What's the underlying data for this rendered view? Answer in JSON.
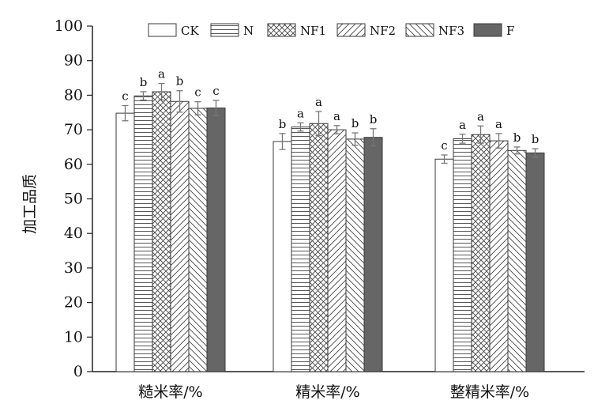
{
  "chart_data": {
    "type": "bar",
    "title": "",
    "xlabel": "",
    "ylabel": "加工品质",
    "ylim": [
      0,
      100
    ],
    "yticks": [
      0,
      10,
      20,
      30,
      40,
      50,
      60,
      70,
      80,
      90,
      100
    ],
    "grid": false,
    "legend_position": "top",
    "categories": [
      "糙米率/%",
      "精米率/%",
      "整精米率/%"
    ],
    "series": [
      {
        "name": "CK",
        "pattern": "plain",
        "values": [
          74.8,
          66.6,
          61.5
        ],
        "errors": [
          2.2,
          2.3,
          1.2
        ],
        "labels": [
          "c",
          "b",
          "c"
        ]
      },
      {
        "name": "N",
        "pattern": "horizontal",
        "values": [
          79.8,
          70.8,
          67.4
        ],
        "errors": [
          1.2,
          1.2,
          1.3
        ],
        "labels": [
          "b",
          "a",
          "a"
        ]
      },
      {
        "name": "NF1",
        "pattern": "crosshatch",
        "values": [
          81.0,
          71.8,
          68.6
        ],
        "errors": [
          2.4,
          3.5,
          2.5
        ],
        "labels": [
          "a",
          "a",
          "a"
        ]
      },
      {
        "name": "NF2",
        "pattern": "forward",
        "values": [
          78.2,
          70.0,
          66.8
        ],
        "errors": [
          3.1,
          1.2,
          2.1
        ],
        "labels": [
          "b",
          "a",
          "a"
        ]
      },
      {
        "name": "NF3",
        "pattern": "backward",
        "values": [
          76.2,
          67.3,
          64.0
        ],
        "errors": [
          1.9,
          1.8,
          1.0
        ],
        "labels": [
          "c",
          "b",
          "b"
        ]
      },
      {
        "name": "F",
        "pattern": "solid",
        "values": [
          76.3,
          67.8,
          63.3
        ],
        "errors": [
          2.2,
          2.5,
          1.2
        ],
        "labels": [
          "c",
          "b",
          "b"
        ]
      }
    ],
    "colors": {
      "solid": "#666666",
      "stroke": "#3a3a3a",
      "axis": "#222222"
    }
  }
}
